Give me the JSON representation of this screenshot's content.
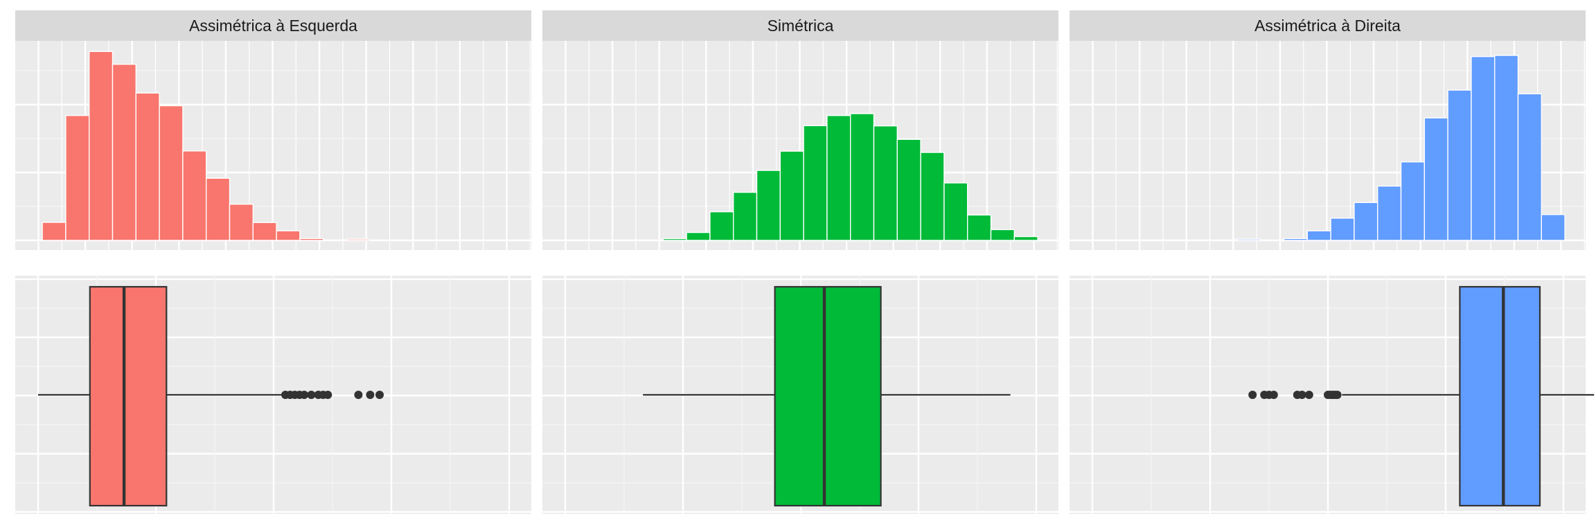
{
  "chart_data": {
    "type": "histogram+boxplot",
    "panels": [
      {
        "title": "Assimétrica à Esquerda",
        "color": "#F8766D",
        "histogram": {
          "counts": [
            0.0935,
            0.6485,
            0.9809,
            0.9144,
            0.7652,
            0.6991,
            0.4644,
            0.3227,
            0.1879,
            0.0926,
            0.0495,
            0.0096,
            0.0,
            0.0065,
            0.0,
            0.0,
            0.0,
            0.0,
            0.0,
            0.0,
            0.0
          ]
        },
        "boxplot": {
          "whisker_low": 0.0,
          "q1": 0.22,
          "median": 0.365,
          "q3": 0.545,
          "whisker_high": 1.05,
          "outliers": [
            1.05,
            1.07,
            1.09,
            1.11,
            1.13,
            1.16,
            1.19,
            1.21,
            1.23,
            1.36,
            1.41,
            1.45
          ]
        }
      },
      {
        "title": "Simétrica",
        "color": "#00BA38",
        "histogram": {
          "counts": [
            0.0,
            0.0,
            0.0,
            0.0,
            0.009,
            0.0409,
            0.1485,
            0.2495,
            0.3632,
            0.4632,
            0.5957,
            0.6483,
            0.6581,
            0.5945,
            0.5245,
            0.4567,
            0.2984,
            0.1318,
            0.0559,
            0.0196,
            0.0
          ]
        },
        "boxplot": {
          "whisker_low": 0.33,
          "q1": 0.89,
          "median": 1.1,
          "q3": 1.34,
          "whisker_high": 1.89,
          "outliers": []
        }
      },
      {
        "title": "Assimétrica à Direita",
        "color": "#619CFF",
        "histogram": {
          "counts": [
            0.0,
            0.0,
            0.0,
            0.0,
            0.0,
            0.0,
            0.0065,
            0.0,
            0.0096,
            0.0495,
            0.1154,
            0.1965,
            0.282,
            0.4075,
            0.6359,
            0.7804,
            0.9545,
            0.9605,
            0.7611,
            0.1341
          ]
        },
        "boxplot": {
          "whisker_low": 1.06,
          "q1": 1.56,
          "median": 1.745,
          "q3": 1.9,
          "whisker_high": 2.13,
          "outliers": [
            0.68,
            0.73,
            0.75,
            0.77,
            0.87,
            0.89,
            0.92,
            1.0,
            1.01,
            1.02,
            1.03,
            1.04
          ]
        }
      }
    ],
    "grid": true,
    "axis_tick_labels": "none"
  }
}
